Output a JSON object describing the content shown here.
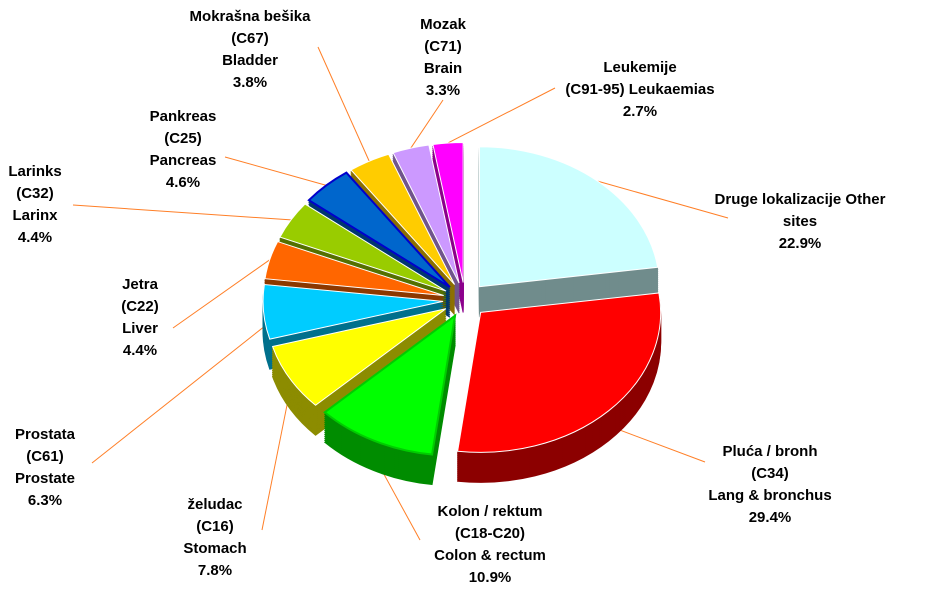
{
  "chart_data": {
    "type": "pie",
    "categories": [
      [
        "Druge lokalizacije Other",
        "sites"
      ],
      [
        "Pluća / bronh",
        "(C34)",
        "Lang & bronchus"
      ],
      [
        "Kolon / rektum",
        "(C18-C20)",
        "Colon & rectum"
      ],
      [
        "želudac",
        "(C16)",
        "Stomach"
      ],
      [
        "Prostata",
        "(C61)",
        "Prostate"
      ],
      [
        "Jetra",
        "(C22)",
        "Liver"
      ],
      [
        "Larinks",
        "(C32)",
        "Larinx"
      ],
      [
        "Pankreas",
        "(C25)",
        "Pancreas"
      ],
      [
        "Mokrašna bešika",
        "(C67)",
        "Bladder"
      ],
      [
        "Mozak",
        "(C71)",
        "Brain"
      ],
      [
        "Leukemije",
        "(C91-95) Leukaemias"
      ]
    ],
    "values": [
      22.9,
      29.4,
      10.9,
      7.8,
      6.3,
      4.4,
      4.4,
      4.6,
      3.8,
      3.3,
      2.7
    ],
    "value_labels": [
      "22.9%",
      "29.4%",
      "10.9%",
      "7.8%",
      "6.3%",
      "4.4%",
      "4.4%",
      "4.6%",
      "3.8%",
      "3.3%",
      "2.7%"
    ],
    "colors": [
      "#ccffff",
      "#ff0000",
      "#00ff00",
      "#ffff00",
      "#00ccff",
      "#ff6600",
      "#99cc00",
      "#0066cc",
      "#ffcc00",
      "#cc99ff",
      "#ff00ff"
    ]
  }
}
